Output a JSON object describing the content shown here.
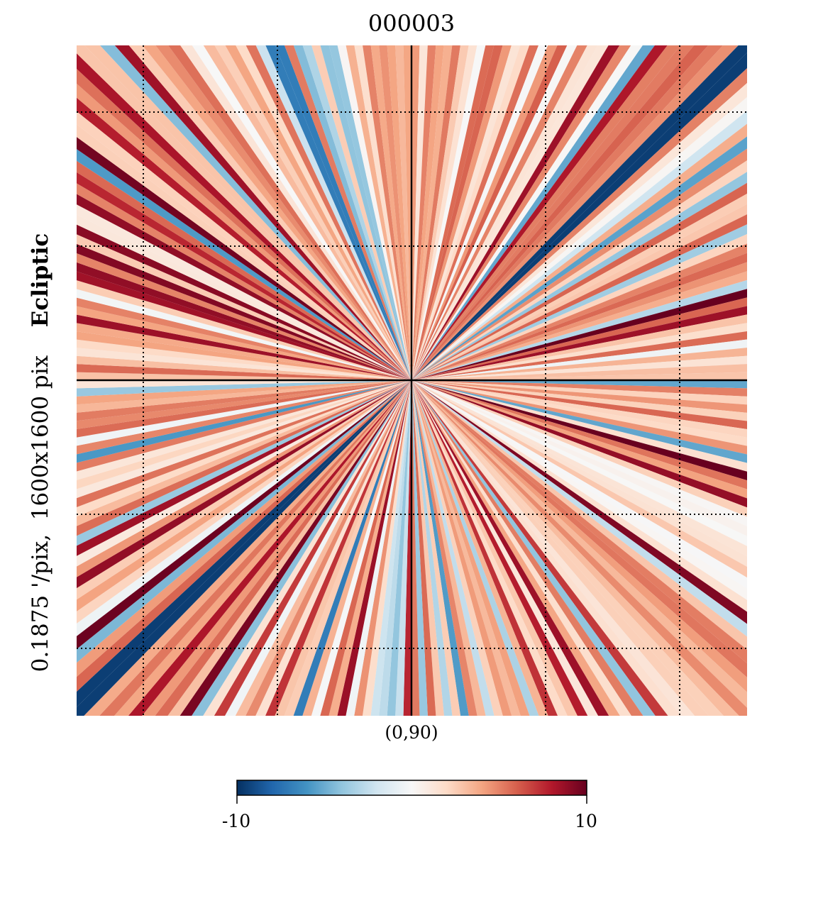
{
  "chart_data": {
    "type": "heatmap",
    "title": "000003",
    "projection": "gnomonic",
    "coord": "Ecliptic",
    "resolution": "0.1875 '/pix,",
    "size": "1600x1600 pix",
    "center": "(0,90)",
    "grid": true,
    "colormap": "RdBu_r",
    "colorbar": {
      "min": -10,
      "max": 10,
      "tick_labels": [
        "-10",
        "10"
      ],
      "orientation": "horizontal",
      "placement": "bottom"
    },
    "colors": {
      "low": "#053061",
      "mid": "#f7f7f7",
      "high": "#67001f"
    }
  }
}
